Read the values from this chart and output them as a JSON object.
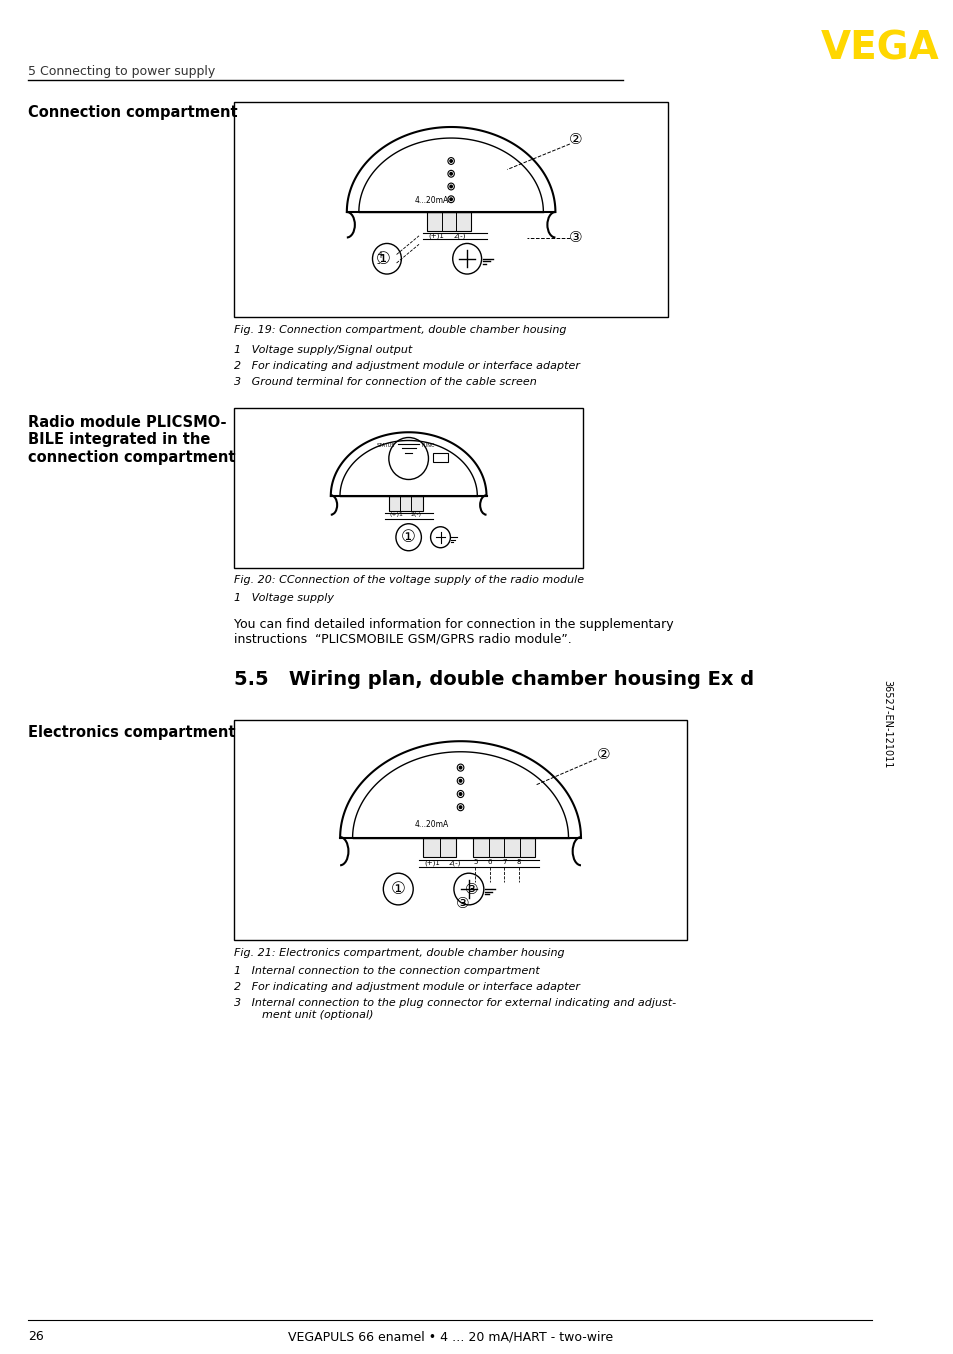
{
  "page_width": 9.54,
  "page_height": 13.54,
  "bg_color": "#ffffff",
  "header_section_text": "5 Connecting to power supply",
  "vega_color": "#FFD700",
  "vega_text": "VEGA",
  "footer_page": "26",
  "footer_center": "VEGAPULS 66 enamel • 4 … 20 mA/HART - two-wire",
  "section_title": "5.5   Wiring plan, double chamber housing Ex d",
  "label_connection": "Connection compartment",
  "label_radio": "Radio module PLICSMO-\nBILE integrated in the\nconnection compartment",
  "label_electronics": "Electronics compartment",
  "fig19_caption": "Fig. 19: Connection compartment, double chamber housing",
  "fig19_items": [
    "1   Voltage supply/Signal output",
    "2   For indicating and adjustment module or interface adapter",
    "3   Ground terminal for connection of the cable screen"
  ],
  "fig20_caption": "Fig. 20: CConnection of the voltage supply of the radio module",
  "fig20_items": [
    "1   Voltage supply"
  ],
  "fig21_caption": "Fig. 21: Electronics compartment, double chamber housing",
  "fig21_items": [
    "1   Internal connection to the connection compartment",
    "2   For indicating and adjustment module or interface adapter",
    "3   Internal connection to the plug connector for external indicating and adjust-\n        ment unit (optional)"
  ],
  "radio_text": "You can find detailed information for connection in the supplementary\ninstructions  “PLICSMOBILE GSM/GPRS radio module”.",
  "sidebar_text": "36527-EN-121011"
}
